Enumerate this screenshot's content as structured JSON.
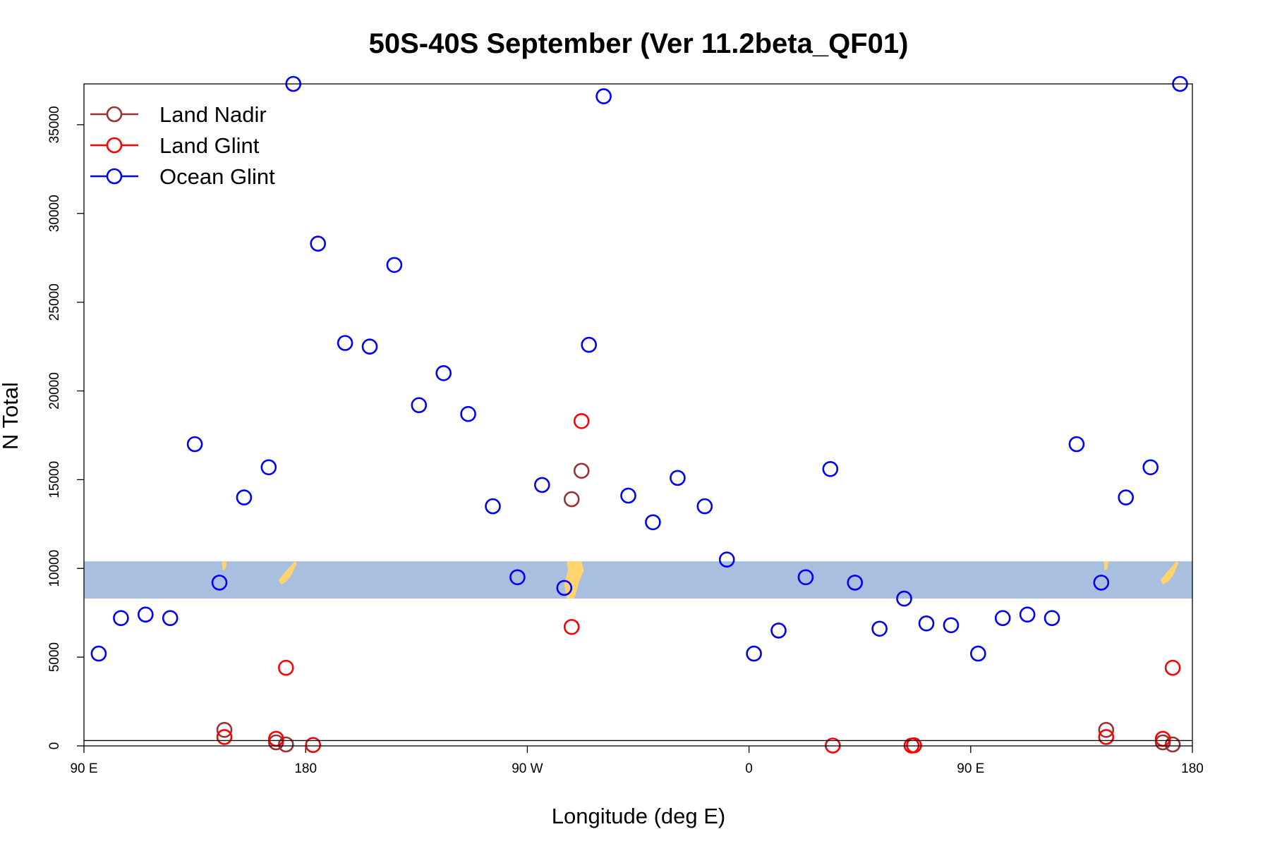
{
  "chart_data": {
    "type": "scatter",
    "title": "50S-40S September (Ver 11.2beta_QF01)",
    "xlabel": "Longitude (deg E)",
    "ylabel": "N Total",
    "xlim": [
      90,
      540
    ],
    "ylim": [
      0,
      37300
    ],
    "x_ticks": [
      {
        "value": 90,
        "label": "90 E"
      },
      {
        "value": 180,
        "label": "180"
      },
      {
        "value": 270,
        "label": "90 W"
      },
      {
        "value": 360,
        "label": "0"
      },
      {
        "value": 450,
        "label": "90 E"
      },
      {
        "value": 540,
        "label": "180"
      }
    ],
    "y_ticks": [
      {
        "value": 0,
        "label": "0"
      },
      {
        "value": 5000,
        "label": "5000"
      },
      {
        "value": 10000,
        "label": "10000"
      },
      {
        "value": 15000,
        "label": "15000"
      },
      {
        "value": 20000,
        "label": "20000"
      },
      {
        "value": 25000,
        "label": "25000"
      },
      {
        "value": 30000,
        "label": "30000"
      },
      {
        "value": 35000,
        "label": "35000"
      }
    ],
    "grid": false,
    "legend_position": "top-left",
    "map_strip": {
      "y_range": [
        8300,
        10400
      ],
      "ocean_color": "#a8bfdf",
      "land_color": "#ffd36e"
    },
    "series": [
      {
        "name": "Land Nadir",
        "color": "#993333",
        "points": [
          [
            147,
            900
          ],
          [
            168,
            200
          ],
          [
            172,
            80
          ],
          [
            288,
            13900
          ],
          [
            292,
            15500
          ],
          [
            505,
            900
          ],
          [
            528,
            200
          ],
          [
            532,
            80
          ]
        ]
      },
      {
        "name": "Land Glint",
        "color": "#ff0000",
        "points": [
          [
            147,
            500
          ],
          [
            168,
            400
          ],
          [
            172,
            4400
          ],
          [
            183,
            50
          ],
          [
            292,
            18300
          ],
          [
            288,
            6700
          ],
          [
            394,
            20
          ],
          [
            426,
            20
          ],
          [
            427,
            30
          ],
          [
            505,
            500
          ],
          [
            528,
            400
          ],
          [
            532,
            4400
          ]
        ]
      },
      {
        "name": "Ocean Glint",
        "color": "#0000ff",
        "points": [
          [
            96,
            5200
          ],
          [
            105,
            7200
          ],
          [
            115,
            7400
          ],
          [
            125,
            7200
          ],
          [
            135,
            17000
          ],
          [
            145,
            9200
          ],
          [
            155,
            14000
          ],
          [
            165,
            15700
          ],
          [
            175,
            37300
          ],
          [
            185,
            28300
          ],
          [
            196,
            22700
          ],
          [
            206,
            22500
          ],
          [
            216,
            27100
          ],
          [
            226,
            19200
          ],
          [
            236,
            21000
          ],
          [
            246,
            18700
          ],
          [
            256,
            13500
          ],
          [
            266,
            9500
          ],
          [
            276,
            14700
          ],
          [
            285,
            8900
          ],
          [
            295,
            22600
          ],
          [
            301,
            36600
          ],
          [
            311,
            14100
          ],
          [
            321,
            12600
          ],
          [
            331,
            15100
          ],
          [
            342,
            13500
          ],
          [
            351,
            10500
          ],
          [
            362,
            5200
          ],
          [
            372,
            6500
          ],
          [
            383,
            9500
          ],
          [
            393,
            15600
          ],
          [
            403,
            9200
          ],
          [
            413,
            6600
          ],
          [
            423,
            8300
          ],
          [
            432,
            6900
          ],
          [
            442,
            6800
          ],
          [
            453,
            5200
          ],
          [
            463,
            7200
          ],
          [
            473,
            7400
          ],
          [
            483,
            7200
          ],
          [
            493,
            17000
          ],
          [
            503,
            9200
          ],
          [
            513,
            14000
          ],
          [
            523,
            15700
          ],
          [
            535,
            37300
          ]
        ]
      }
    ]
  }
}
